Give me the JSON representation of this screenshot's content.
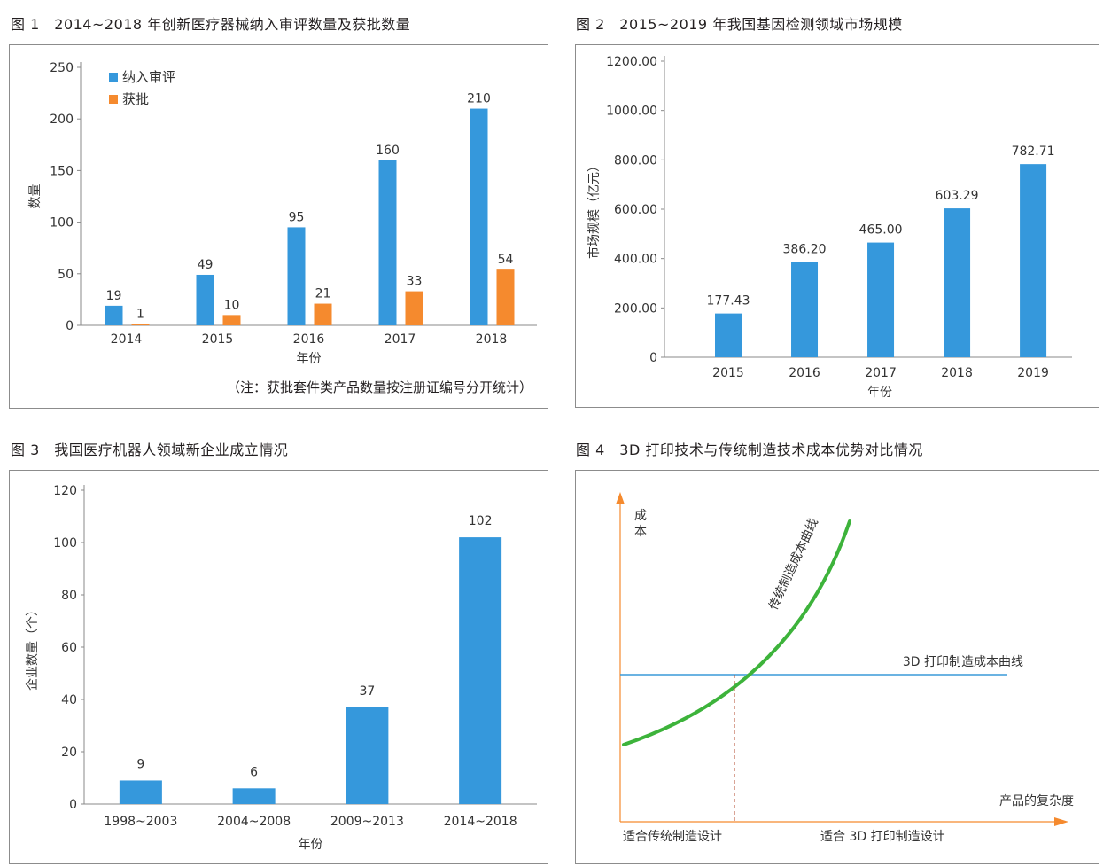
{
  "colors": {
    "blue": "#3598dc",
    "orange": "#f58a2e",
    "green": "#3db33b",
    "axis": "#888888",
    "line_blue": "#3a9ad9",
    "dashed": "#b34a2e"
  },
  "captions": {
    "fig1": "图 1　2014~2018 年创新医疗器械纳入审评数量及获批数量",
    "fig2": "图 2　2015~2019 年我国基因检测领域市场规模",
    "fig3": "图 3　我国医疗机器人领域新企业成立情况",
    "fig4": "图 4　3D 打印技术与传统制造技术成本优势对比情况"
  },
  "chart_data": [
    {
      "type": "bar",
      "categories": [
        "2014",
        "2015",
        "2016",
        "2017",
        "2018"
      ],
      "series": [
        {
          "name": "纳入审评",
          "values": [
            19,
            49,
            95,
            160,
            210
          ]
        },
        {
          "name": "获批",
          "values": [
            1,
            10,
            21,
            33,
            54
          ]
        }
      ],
      "ylim": [
        0,
        250
      ],
      "yticks": [
        "0",
        "50",
        "100",
        "150",
        "200",
        "250"
      ],
      "xlabel": "年份",
      "ylabel": "数量",
      "note": "（注：获批套件类产品数量按注册证编号分开统计）",
      "legend": "top-left",
      "grid": false
    },
    {
      "type": "bar",
      "categories": [
        "2015",
        "2016",
        "2017",
        "2018",
        "2019"
      ],
      "values": [
        177.43,
        386.2,
        465.0,
        603.29,
        782.71
      ],
      "value_labels": [
        "177.43",
        "386.20",
        "465.00",
        "603.29",
        "782.71"
      ],
      "ylim": [
        0,
        1200
      ],
      "yticks": [
        "0",
        "200.00",
        "400.00",
        "600.00",
        "800.00",
        "1000.00",
        "1200.00"
      ],
      "xlabel": "年份",
      "ylabel": "市场规模（亿元）",
      "grid": false
    },
    {
      "type": "bar",
      "categories": [
        "1998~2003",
        "2004~2008",
        "2009~2013",
        "2014~2018"
      ],
      "values": [
        9,
        6,
        37,
        102
      ],
      "ylim": [
        0,
        120
      ],
      "yticks": [
        "0",
        "20",
        "40",
        "60",
        "80",
        "100",
        "120"
      ],
      "xlabel": "年份",
      "ylabel": "企业数量（个）",
      "grid": false
    },
    {
      "type": "line",
      "ylabel": "成本",
      "xlabel": "产品的复杂度",
      "series": [
        {
          "name": "传统制造成本曲线"
        },
        {
          "name": "3D 打印制造成本曲线"
        }
      ],
      "regions": [
        "适合传统制造设计",
        "适合 3D 打印制造设计"
      ]
    }
  ]
}
